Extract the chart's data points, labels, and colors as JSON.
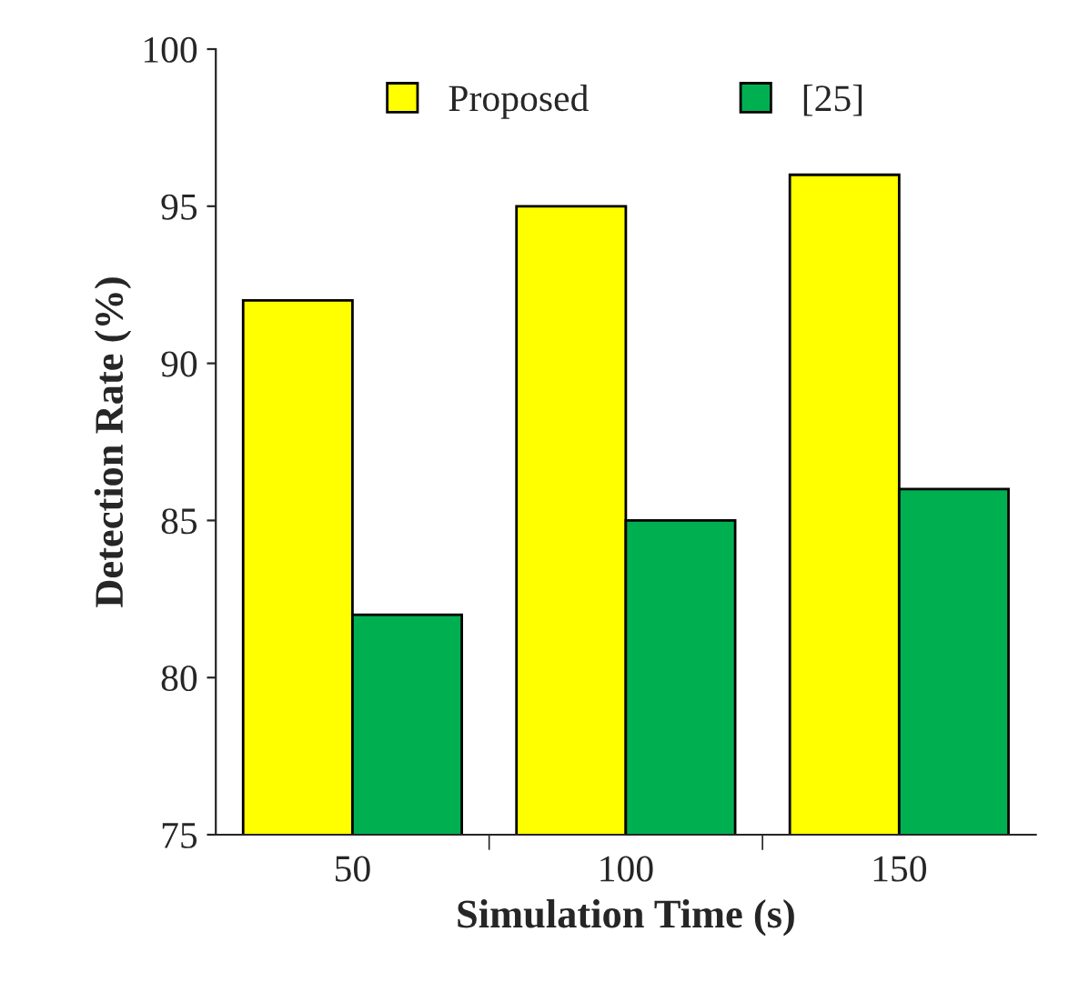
{
  "chart_data": {
    "type": "bar",
    "xlabel": "Simulation Time (s)",
    "ylabel": "Detection Rate (%)",
    "categories": [
      "50",
      "100",
      "150"
    ],
    "series": [
      {
        "name": "Proposed",
        "color": "#ffff00",
        "values": [
          92,
          95,
          96
        ]
      },
      {
        "name": "[25]",
        "color": "#00b050",
        "values": [
          82,
          85,
          86
        ]
      }
    ],
    "ylim": [
      75,
      100
    ],
    "yticks": [
      75,
      80,
      85,
      90,
      95,
      100
    ],
    "legend": "top",
    "grid": false
  }
}
